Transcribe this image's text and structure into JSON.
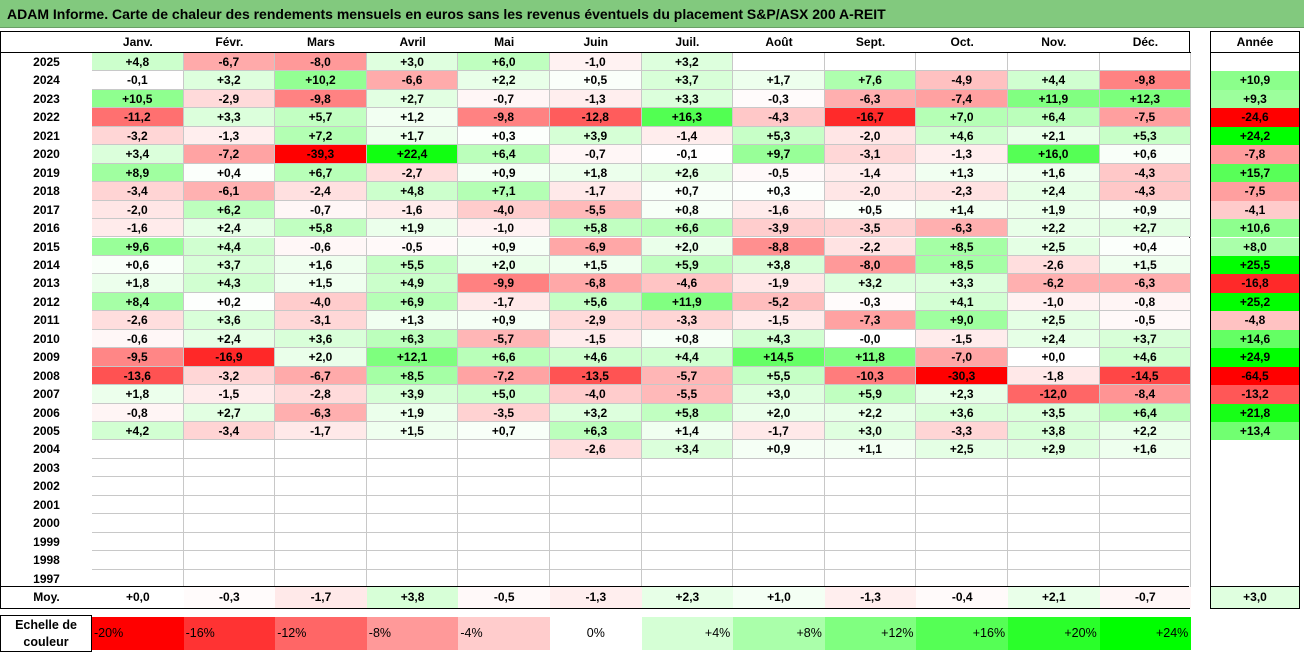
{
  "title": "ADAM Informe. Carte de chaleur des rendements mensuels en euros sans les revenus éventuels du placement S&P/ASX 200 A-REIT",
  "colors": {
    "title_bg": "#82c97e",
    "negative": "#ff0000",
    "positive": "#00ff00",
    "neutral": "#ffffff"
  },
  "chart_data": {
    "type": "heatmap",
    "title": "ADAM Informe. Carte de chaleur des rendements mensuels en euros sans les revenus éventuels du placement S&P/ASX 200 A-REIT",
    "months": [
      "Janv.",
      "Févr.",
      "Mars",
      "Avril",
      "Mai",
      "Juin",
      "Juil.",
      "Août",
      "Sept.",
      "Oct.",
      "Nov.",
      "Déc."
    ],
    "annual_label": "Année",
    "rows": [
      {
        "year": "2025",
        "values": [
          "+4,8",
          "-6,7",
          "-8,0",
          "+3,0",
          "+6,0",
          "-1,0",
          "+3,2",
          "",
          "",
          "",
          "",
          ""
        ],
        "annual": ""
      },
      {
        "year": "2024",
        "values": [
          "-0,1",
          "+3,2",
          "+10,2",
          "-6,6",
          "+2,2",
          "+0,5",
          "+3,7",
          "+1,7",
          "+7,6",
          "-4,9",
          "+4,4",
          "-9,8"
        ],
        "annual": "+10,9"
      },
      {
        "year": "2023",
        "values": [
          "+10,5",
          "-2,9",
          "-9,8",
          "+2,7",
          "-0,7",
          "-1,3",
          "+3,3",
          "-0,3",
          "-6,3",
          "-7,4",
          "+11,9",
          "+12,3"
        ],
        "annual": "+9,3"
      },
      {
        "year": "2022",
        "values": [
          "-11,2",
          "+3,3",
          "+5,7",
          "+1,2",
          "-9,8",
          "-12,8",
          "+16,3",
          "-4,3",
          "-16,7",
          "+7,0",
          "+6,4",
          "-7,5"
        ],
        "annual": "-24,6"
      },
      {
        "year": "2021",
        "values": [
          "-3,2",
          "-1,3",
          "+7,2",
          "+1,7",
          "+0,3",
          "+3,9",
          "-1,4",
          "+5,3",
          "-2,0",
          "+4,6",
          "+2,1",
          "+5,3"
        ],
        "annual": "+24,2"
      },
      {
        "year": "2020",
        "values": [
          "+3,4",
          "-7,2",
          "-39,3",
          "+22,4",
          "+6,4",
          "-0,7",
          "-0,1",
          "+9,7",
          "-3,1",
          "-1,3",
          "+16,0",
          "+0,6"
        ],
        "annual": "-7,8"
      },
      {
        "year": "2019",
        "values": [
          "+8,9",
          "+0,4",
          "+6,7",
          "-2,7",
          "+0,9",
          "+1,8",
          "+2,6",
          "-0,5",
          "-1,4",
          "+1,3",
          "+1,6",
          "-4,3"
        ],
        "annual": "+15,7"
      },
      {
        "year": "2018",
        "values": [
          "-3,4",
          "-6,1",
          "-2,4",
          "+4,8",
          "+7,1",
          "-1,7",
          "+0,7",
          "+0,3",
          "-2,0",
          "-2,3",
          "+2,4",
          "-4,3"
        ],
        "annual": "-7,5"
      },
      {
        "year": "2017",
        "values": [
          "-2,0",
          "+6,2",
          "-0,7",
          "-1,6",
          "-4,0",
          "-5,5",
          "+0,8",
          "-1,6",
          "+0,5",
          "+1,4",
          "+1,9",
          "+0,9"
        ],
        "annual": "-4,1"
      },
      {
        "year": "2016",
        "values": [
          "-1,6",
          "+2,4",
          "+5,8",
          "+1,9",
          "-1,0",
          "+5,8",
          "+6,6",
          "-3,9",
          "-3,5",
          "-6,3",
          "+2,2",
          "+2,7"
        ],
        "annual": "+10,6"
      },
      {
        "year": "2015",
        "values": [
          "+9,6",
          "+4,4",
          "-0,6",
          "-0,5",
          "+0,9",
          "-6,9",
          "+2,0",
          "-8,8",
          "-2,2",
          "+8,5",
          "+2,5",
          "+0,4"
        ],
        "annual": "+8,0"
      },
      {
        "year": "2014",
        "values": [
          "+0,6",
          "+3,7",
          "+1,6",
          "+5,5",
          "+2,0",
          "+1,5",
          "+5,9",
          "+3,8",
          "-8,0",
          "+8,5",
          "-2,6",
          "+1,5"
        ],
        "annual": "+25,5"
      },
      {
        "year": "2013",
        "values": [
          "+1,8",
          "+4,3",
          "+1,5",
          "+4,9",
          "-9,9",
          "-6,8",
          "-4,6",
          "-1,9",
          "+3,2",
          "+3,3",
          "-6,2",
          "-6,3"
        ],
        "annual": "-16,8"
      },
      {
        "year": "2012",
        "values": [
          "+8,4",
          "+0,2",
          "-4,0",
          "+6,9",
          "-1,7",
          "+5,6",
          "+11,9",
          "-5,2",
          "-0,3",
          "+4,1",
          "-1,0",
          "-0,8"
        ],
        "annual": "+25,2"
      },
      {
        "year": "2011",
        "values": [
          "-2,6",
          "+3,6",
          "-3,1",
          "+1,3",
          "+0,9",
          "-2,9",
          "-3,3",
          "-1,5",
          "-7,3",
          "+9,0",
          "+2,5",
          "-0,5"
        ],
        "annual": "-4,8"
      },
      {
        "year": "2010",
        "values": [
          "-0,6",
          "+2,4",
          "+3,6",
          "+6,3",
          "-5,7",
          "-1,5",
          "+0,8",
          "+4,3",
          "-0,0",
          "-1,5",
          "+2,4",
          "+3,7"
        ],
        "annual": "+14,6"
      },
      {
        "year": "2009",
        "values": [
          "-9,5",
          "-16,9",
          "+2,0",
          "+12,1",
          "+6,6",
          "+4,6",
          "+4,4",
          "+14,5",
          "+11,8",
          "-7,0",
          "+0,0",
          "+4,6"
        ],
        "annual": "+24,9"
      },
      {
        "year": "2008",
        "values": [
          "-13,6",
          "-3,2",
          "-6,7",
          "+8,5",
          "-7,2",
          "-13,5",
          "-5,7",
          "+5,5",
          "-10,3",
          "-30,3",
          "-1,8",
          "-14,5"
        ],
        "annual": "-64,5"
      },
      {
        "year": "2007",
        "values": [
          "+1,8",
          "-1,5",
          "-2,8",
          "+3,9",
          "+5,0",
          "-4,0",
          "-5,5",
          "+3,0",
          "+5,9",
          "+2,3",
          "-12,0",
          "-8,4"
        ],
        "annual": "-13,2"
      },
      {
        "year": "2006",
        "values": [
          "-0,8",
          "+2,7",
          "-6,3",
          "+1,9",
          "-3,5",
          "+3,2",
          "+5,8",
          "+2,0",
          "+2,2",
          "+3,6",
          "+3,5",
          "+6,4"
        ],
        "annual": "+21,8"
      },
      {
        "year": "2005",
        "values": [
          "+4,2",
          "-3,4",
          "-1,7",
          "+1,5",
          "+0,7",
          "+6,3",
          "+1,4",
          "-1,7",
          "+3,0",
          "-3,3",
          "+3,8",
          "+2,2"
        ],
        "annual": "+13,4"
      },
      {
        "year": "2004",
        "values": [
          "",
          "",
          "",
          "",
          "",
          "-2,6",
          "+3,4",
          "+0,9",
          "+1,1",
          "+2,5",
          "+2,9",
          "+1,6"
        ],
        "annual": ""
      },
      {
        "year": "2003",
        "values": [
          "",
          "",
          "",
          "",
          "",
          "",
          "",
          "",
          "",
          "",
          "",
          ""
        ],
        "annual": ""
      },
      {
        "year": "2002",
        "values": [
          "",
          "",
          "",
          "",
          "",
          "",
          "",
          "",
          "",
          "",
          "",
          ""
        ],
        "annual": ""
      },
      {
        "year": "2001",
        "values": [
          "",
          "",
          "",
          "",
          "",
          "",
          "",
          "",
          "",
          "",
          "",
          ""
        ],
        "annual": ""
      },
      {
        "year": "2000",
        "values": [
          "",
          "",
          "",
          "",
          "",
          "",
          "",
          "",
          "",
          "",
          "",
          ""
        ],
        "annual": ""
      },
      {
        "year": "1999",
        "values": [
          "",
          "",
          "",
          "",
          "",
          "",
          "",
          "",
          "",
          "",
          "",
          ""
        ],
        "annual": ""
      },
      {
        "year": "1998",
        "values": [
          "",
          "",
          "",
          "",
          "",
          "",
          "",
          "",
          "",
          "",
          "",
          ""
        ],
        "annual": ""
      },
      {
        "year": "1997",
        "values": [
          "",
          "",
          "",
          "",
          "",
          "",
          "",
          "",
          "",
          "",
          "",
          ""
        ],
        "annual": ""
      }
    ],
    "average": {
      "label": "Moy.",
      "values": [
        "+0,0",
        "-0,3",
        "-1,7",
        "+3,8",
        "-0,5",
        "-1,3",
        "+2,3",
        "+1,0",
        "-1,3",
        "-0,4",
        "+2,1",
        "-0,7"
      ],
      "annual": "+3,0"
    },
    "scale": {
      "label": "Echelle de couleur",
      "steps": [
        "-20%",
        "-16%",
        "-12%",
        "-8%",
        "-4%",
        "0%",
        "+4%",
        "+8%",
        "+12%",
        "+16%",
        "+20%",
        "+24%"
      ]
    }
  }
}
